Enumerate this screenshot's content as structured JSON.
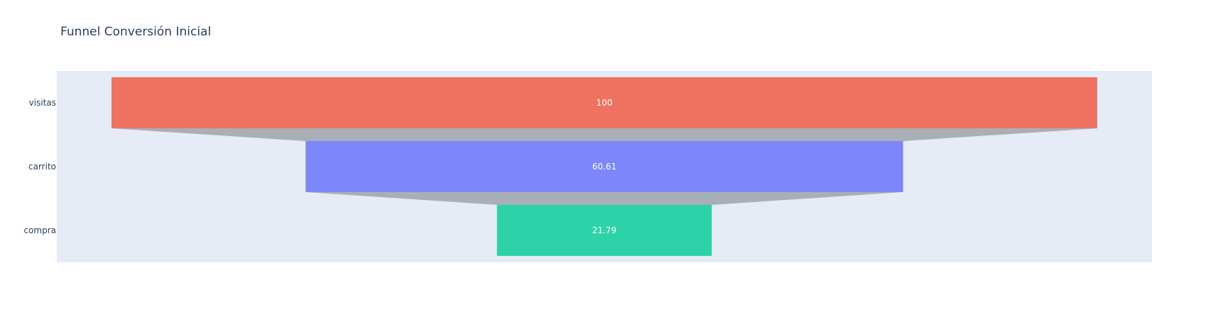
{
  "chart_data": {
    "type": "funnel",
    "title": "Funnel Conversión Inicial",
    "categories": [
      "visitas",
      "carrito",
      "compra"
    ],
    "values": [
      100,
      60.61,
      21.79
    ],
    "value_labels": [
      "100",
      "60.61",
      "21.79"
    ],
    "colors": [
      "#ef553b",
      "#636efa",
      "#00cc96"
    ],
    "bar_color_style": "semi-transparent",
    "connector_color": "#a9afb7",
    "plot_background": "#e5ecf6",
    "legend": "none",
    "grid": false
  }
}
